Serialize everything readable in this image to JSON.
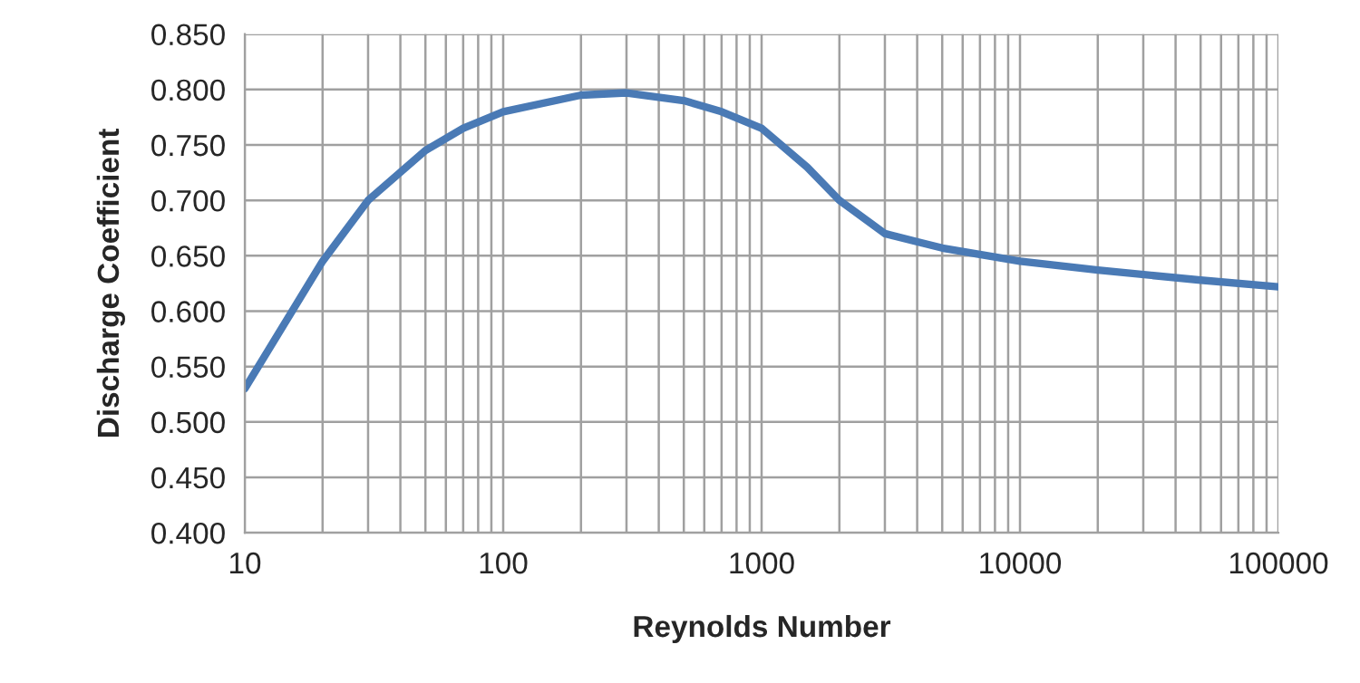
{
  "chart_data": {
    "type": "line",
    "xlabel": "Reynolds Number",
    "ylabel": "Discharge Coefficient",
    "log": "x",
    "grid": true,
    "marker": "none",
    "line_style": "solid",
    "x": [
      10,
      20,
      30,
      50,
      70,
      100,
      200,
      300,
      500,
      700,
      1000,
      1500,
      2000,
      3000,
      5000,
      10000,
      20000,
      50000,
      100000
    ],
    "series": [
      {
        "color": "#4a7ab5",
        "values": [
          0.53,
          0.645,
          0.7,
          0.745,
          0.765,
          0.78,
          0.795,
          0.797,
          0.79,
          0.78,
          0.765,
          0.73,
          0.7,
          0.67,
          0.657,
          0.645,
          0.637,
          0.628,
          0.622
        ]
      }
    ],
    "xlim": [
      10,
      100000
    ],
    "xticks": [
      10,
      100,
      1000,
      10000,
      100000
    ],
    "ylim": [
      0.4,
      0.85
    ],
    "yticks": [
      {
        "value": 0.4,
        "label": "0.400"
      },
      {
        "value": 0.45,
        "label": "0.450"
      },
      {
        "value": 0.5,
        "label": "0.500"
      },
      {
        "value": 0.55,
        "label": "0.550"
      },
      {
        "value": 0.6,
        "label": "0.600"
      },
      {
        "value": 0.65,
        "label": "0.650"
      },
      {
        "value": 0.7,
        "label": "0.700"
      },
      {
        "value": 0.75,
        "label": "0.750"
      },
      {
        "value": 0.8,
        "label": "0.800"
      },
      {
        "value": 0.85,
        "label": "0.850"
      }
    ]
  }
}
